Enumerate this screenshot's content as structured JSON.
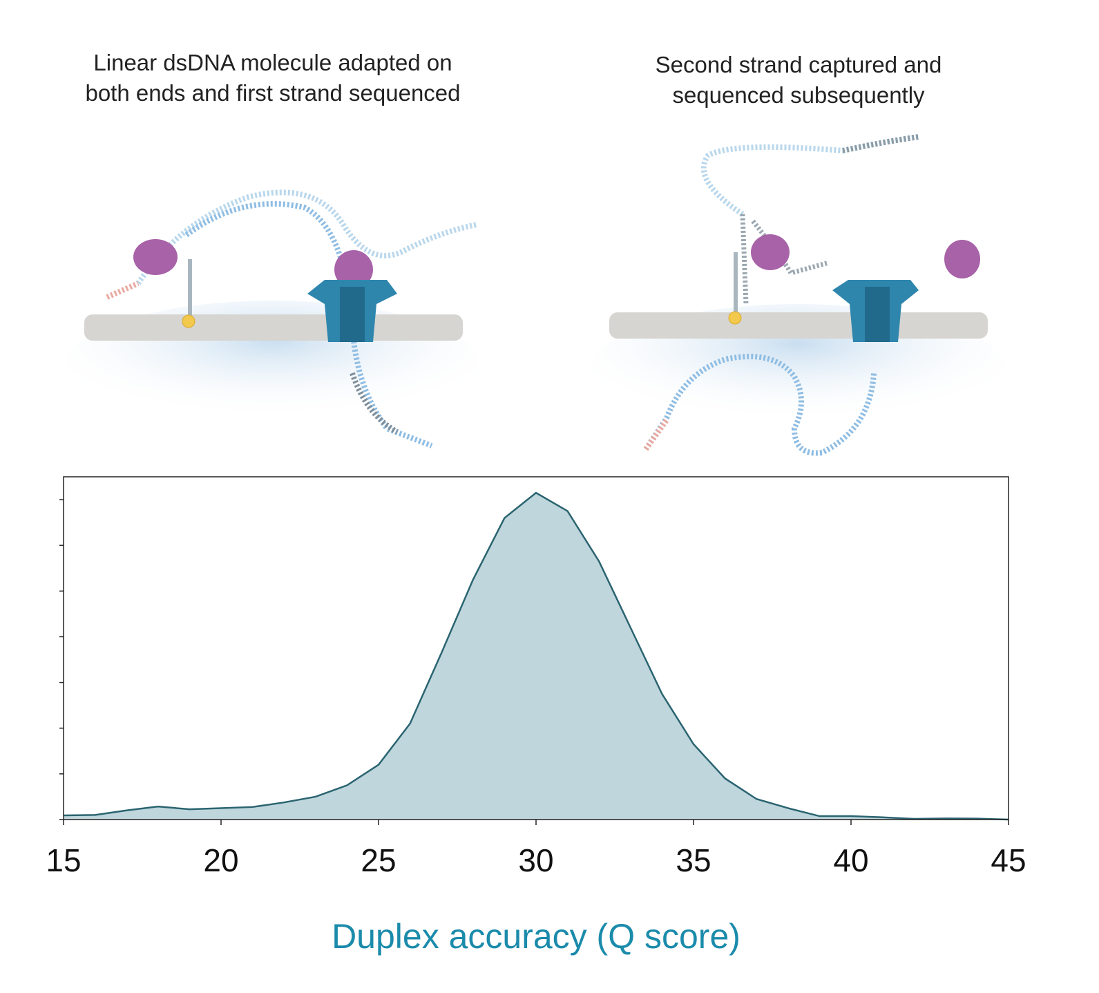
{
  "illustrations": [
    {
      "caption": [
        "Linear dsDNA molecule adapted on",
        "both ends and first strand sequenced"
      ]
    },
    {
      "caption": [
        "Second strand captured and",
        "sequenced subsequently"
      ]
    }
  ],
  "chart_data": {
    "type": "area",
    "x": [
      15,
      16,
      17,
      18,
      19,
      20,
      21,
      22,
      23,
      24,
      25,
      26,
      27,
      28,
      29,
      30,
      31,
      32,
      33,
      34,
      35,
      36,
      37,
      38,
      39,
      40,
      41,
      42,
      43,
      44,
      45
    ],
    "values": [
      0.0018,
      0.002,
      0.004,
      0.0057,
      0.0045,
      0.005,
      0.0055,
      0.0075,
      0.01,
      0.015,
      0.024,
      0.042,
      0.073,
      0.105,
      0.132,
      0.143,
      0.135,
      0.113,
      0.084,
      0.055,
      0.033,
      0.018,
      0.009,
      0.005,
      0.0015,
      0.0015,
      0.001,
      0.0003,
      0.0005,
      0.0004,
      0
    ],
    "color": "#bfd6dc",
    "line_color": "#2a6470",
    "xlim": [
      15,
      45
    ],
    "xticks": [
      15,
      20,
      25,
      30,
      35,
      40,
      45
    ],
    "ylim": [
      0,
      0.15
    ],
    "yticks": [
      0,
      0.02,
      0.04,
      0.06,
      0.08,
      0.1,
      0.12,
      0.14
    ],
    "xlabel": "Duplex accuracy (Q score)"
  }
}
